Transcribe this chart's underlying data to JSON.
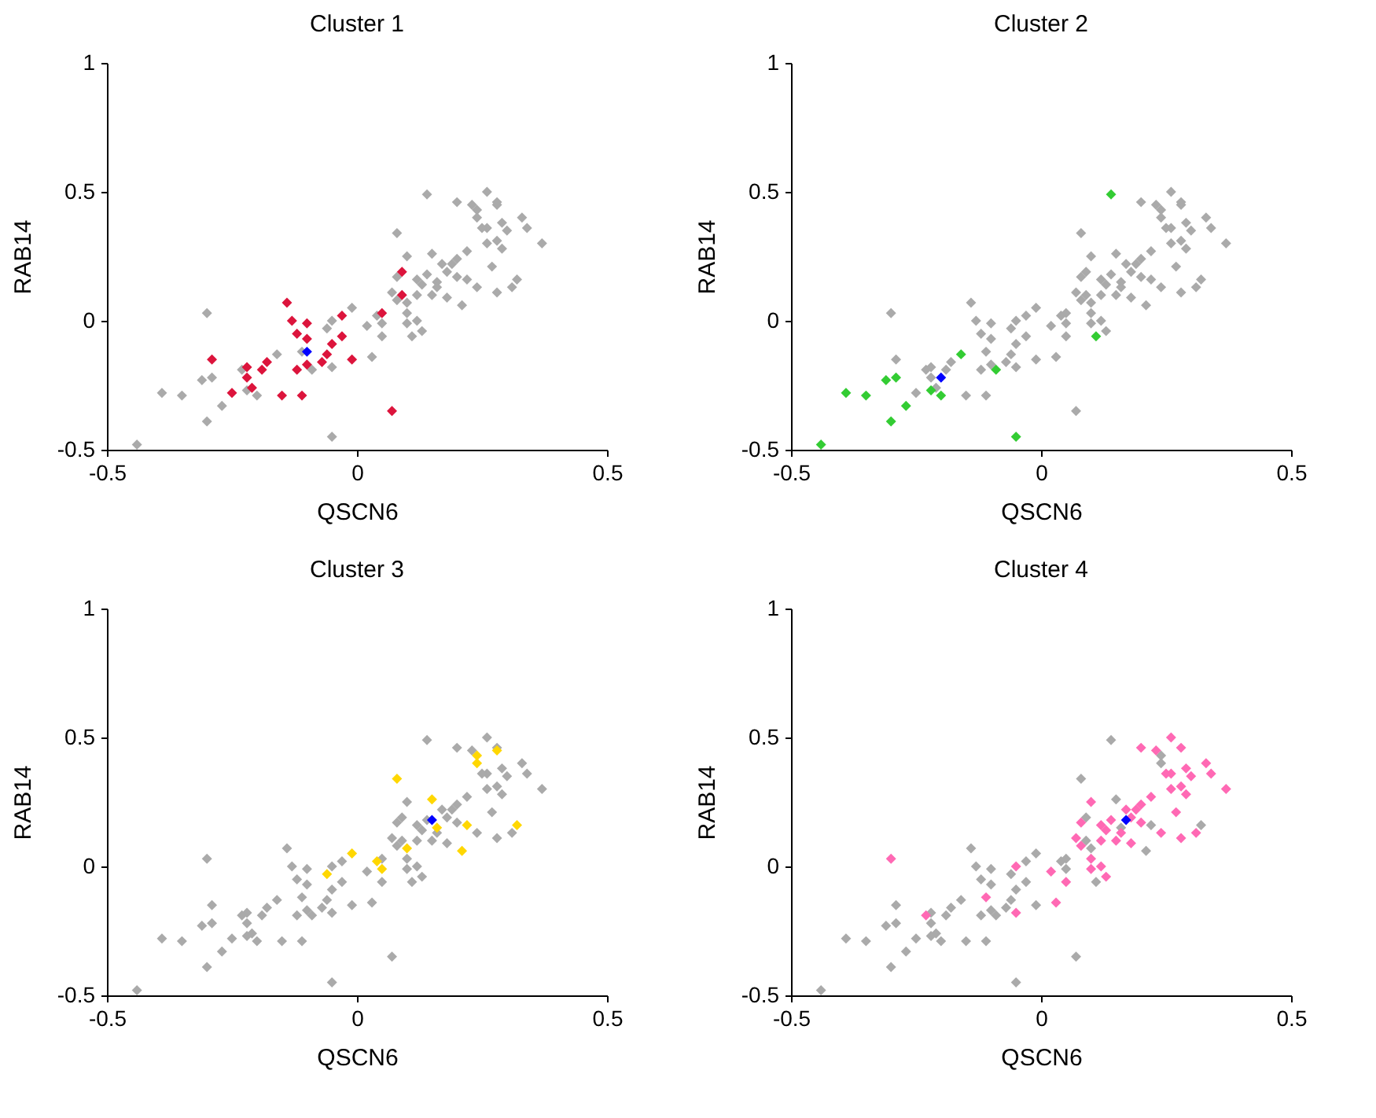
{
  "chart_data": [
    {
      "type": "scatter",
      "title": "Cluster 1",
      "xlabel": "QSCN6",
      "ylabel": "RAB14",
      "xlim": [
        -0.5,
        0.5
      ],
      "ylim": [
        -0.5,
        1
      ],
      "xticks": [
        -0.5,
        0,
        0.5
      ],
      "yticks": [
        -0.5,
        0,
        0.5,
        1
      ],
      "marker": "diamond",
      "series": [
        {
          "color": "#aaaaaa",
          "x": [
            0.14,
            0.11,
            -0.16,
            -0.09,
            -0.22,
            -0.2,
            -0.29,
            -0.31,
            -0.39,
            -0.35,
            -0.27,
            -0.3,
            -0.44,
            -0.05,
            0.08,
            0.24,
            0.24,
            0.28,
            0.15,
            0.16,
            0.22,
            0.32,
            0.21,
            0.1,
            -0.01,
            0.04,
            0.05,
            -0.06,
            0.26,
            0.28,
            0.23,
            0.2,
            0.33,
            0.34,
            0.37,
            0.29,
            0.3,
            0.26,
            0.25,
            0.28,
            0.26,
            0.29,
            0.1,
            0.22,
            0.2,
            0.19,
            0.17,
            0.18,
            0.2,
            0.14,
            0.12,
            0.08,
            0.13,
            0.16,
            0.15,
            0.18,
            0.24,
            0.27,
            0.28,
            0.31,
            0.07,
            0.08,
            0.12,
            0.1,
            0.12,
            0.1,
            0.13,
            0.05,
            0.02,
            -0.05,
            0.03,
            -0.05,
            -0.11,
            -0.23,
            -0.3
          ],
          "values": [
            0.49,
            -0.06,
            -0.13,
            -0.19,
            -0.27,
            -0.29,
            -0.22,
            -0.23,
            -0.28,
            -0.29,
            -0.33,
            -0.39,
            -0.48,
            -0.45,
            0.34,
            0.43,
            0.4,
            0.45,
            0.26,
            0.15,
            0.16,
            0.16,
            0.06,
            0.07,
            0.05,
            0.02,
            -0.01,
            -0.03,
            0.5,
            0.46,
            0.45,
            0.46,
            0.4,
            0.36,
            0.3,
            0.38,
            0.35,
            0.36,
            0.36,
            0.31,
            0.3,
            0.28,
            0.25,
            0.27,
            0.24,
            0.22,
            0.22,
            0.19,
            0.17,
            0.18,
            0.16,
            0.17,
            0.14,
            0.13,
            0.1,
            0.09,
            0.13,
            0.21,
            0.11,
            0.13,
            0.11,
            0.08,
            0.1,
            0.03,
            0,
            -0.01,
            -0.04,
            -0.06,
            -0.02,
            0,
            -0.14,
            -0.18,
            -0.12,
            -0.19,
            0.03
          ]
        },
        {
          "color": "#dc143c",
          "x": [
            -0.14,
            -0.13,
            -0.1,
            -0.12,
            -0.1,
            -0.03,
            0.05,
            0.09,
            0.09,
            -0.03,
            -0.05,
            -0.06,
            -0.07,
            -0.1,
            -0.12,
            -0.01,
            -0.29,
            -0.22,
            -0.22,
            -0.19,
            -0.18,
            -0.21,
            -0.25,
            -0.15,
            -0.11,
            0.07
          ],
          "values": [
            0.07,
            0,
            -0.01,
            -0.05,
            -0.07,
            0.02,
            0.03,
            0.19,
            0.1,
            -0.06,
            -0.09,
            -0.13,
            -0.16,
            -0.17,
            -0.19,
            -0.15,
            -0.15,
            -0.18,
            -0.22,
            -0.19,
            -0.16,
            -0.26,
            -0.28,
            -0.29,
            -0.29,
            -0.35
          ]
        },
        {
          "color": "#0000ff",
          "x": [
            -0.1
          ],
          "values": [
            -0.12
          ]
        }
      ]
    },
    {
      "type": "scatter",
      "title": "Cluster 2",
      "xlabel": "QSCN6",
      "ylabel": "RAB14",
      "xlim": [
        -0.5,
        0.5
      ],
      "ylim": [
        -0.5,
        1
      ],
      "xticks": [
        -0.5,
        0,
        0.5
      ],
      "yticks": [
        -0.5,
        0,
        0.5,
        1
      ],
      "marker": "diamond",
      "series": [
        {
          "color": "#aaaaaa",
          "x": [
            -0.14,
            -0.13,
            -0.1,
            -0.12,
            -0.1,
            -0.03,
            0.05,
            0.09,
            0.09,
            -0.03,
            -0.05,
            -0.06,
            -0.07,
            -0.1,
            -0.12,
            -0.01,
            -0.29,
            -0.22,
            -0.22,
            -0.19,
            -0.18,
            -0.21,
            -0.25,
            -0.15,
            -0.11,
            0.07,
            0.08,
            0.24,
            0.24,
            0.28,
            0.15,
            0.16,
            0.22,
            0.32,
            0.21,
            0.1,
            -0.01,
            0.04,
            0.05,
            -0.06,
            0.26,
            0.28,
            0.23,
            0.2,
            0.33,
            0.34,
            0.37,
            0.29,
            0.3,
            0.26,
            0.25,
            0.28,
            0.26,
            0.29,
            0.1,
            0.22,
            0.2,
            0.19,
            0.17,
            0.18,
            0.2,
            0.14,
            0.12,
            0.08,
            0.13,
            0.16,
            0.15,
            0.18,
            0.24,
            0.27,
            0.28,
            0.31,
            0.07,
            0.08,
            0.12,
            0.1,
            0.12,
            0.1,
            0.13,
            0.05,
            0.02,
            -0.05,
            0.03,
            -0.05,
            -0.11,
            -0.23,
            -0.3
          ],
          "values": [
            0.07,
            0,
            -0.01,
            -0.05,
            -0.07,
            0.02,
            0.03,
            0.19,
            0.1,
            -0.06,
            -0.09,
            -0.13,
            -0.16,
            -0.17,
            -0.19,
            -0.15,
            -0.15,
            -0.18,
            -0.22,
            -0.19,
            -0.16,
            -0.26,
            -0.28,
            -0.29,
            -0.29,
            -0.35,
            0.34,
            0.43,
            0.4,
            0.45,
            0.26,
            0.15,
            0.16,
            0.16,
            0.06,
            0.07,
            0.05,
            0.02,
            -0.01,
            -0.03,
            0.5,
            0.46,
            0.45,
            0.46,
            0.4,
            0.36,
            0.3,
            0.38,
            0.35,
            0.36,
            0.36,
            0.31,
            0.3,
            0.28,
            0.25,
            0.27,
            0.24,
            0.22,
            0.22,
            0.19,
            0.17,
            0.18,
            0.16,
            0.17,
            0.14,
            0.13,
            0.1,
            0.09,
            0.13,
            0.21,
            0.11,
            0.13,
            0.11,
            0.08,
            0.1,
            0.03,
            0,
            -0.01,
            -0.04,
            -0.06,
            -0.02,
            0,
            -0.14,
            -0.18,
            -0.12,
            -0.19,
            0.03
          ]
        },
        {
          "color": "#33cc33",
          "x": [
            0.14,
            0.11,
            -0.16,
            -0.09,
            -0.22,
            -0.2,
            -0.29,
            -0.31,
            -0.39,
            -0.35,
            -0.27,
            -0.3,
            -0.44,
            -0.05
          ],
          "values": [
            0.49,
            -0.06,
            -0.13,
            -0.19,
            -0.27,
            -0.29,
            -0.22,
            -0.23,
            -0.28,
            -0.29,
            -0.33,
            -0.39,
            -0.48,
            -0.45
          ]
        },
        {
          "color": "#0000ff",
          "x": [
            -0.2
          ],
          "values": [
            -0.22
          ]
        }
      ]
    },
    {
      "type": "scatter",
      "title": "Cluster 3",
      "xlabel": "QSCN6",
      "ylabel": "RAB14",
      "xlim": [
        -0.5,
        0.5
      ],
      "ylim": [
        -0.5,
        1
      ],
      "xticks": [
        -0.5,
        0,
        0.5
      ],
      "yticks": [
        -0.5,
        0,
        0.5,
        1
      ],
      "marker": "diamond",
      "series": [
        {
          "color": "#aaaaaa",
          "x": [
            -0.14,
            -0.13,
            -0.1,
            -0.12,
            -0.1,
            -0.03,
            0.05,
            0.09,
            0.09,
            -0.03,
            -0.05,
            -0.06,
            -0.07,
            -0.1,
            -0.12,
            -0.01,
            -0.29,
            -0.22,
            -0.22,
            -0.19,
            -0.18,
            -0.21,
            -0.25,
            -0.15,
            -0.11,
            0.07,
            0.14,
            0.11,
            -0.16,
            -0.09,
            -0.22,
            -0.2,
            -0.29,
            -0.31,
            -0.39,
            -0.35,
            -0.27,
            -0.3,
            -0.44,
            -0.05,
            0.26,
            0.28,
            0.23,
            0.2,
            0.33,
            0.34,
            0.37,
            0.29,
            0.3,
            0.26,
            0.25,
            0.28,
            0.26,
            0.29,
            0.1,
            0.22,
            0.2,
            0.19,
            0.17,
            0.18,
            0.2,
            0.14,
            0.12,
            0.08,
            0.13,
            0.16,
            0.15,
            0.18,
            0.24,
            0.27,
            0.28,
            0.31,
            0.07,
            0.08,
            0.12,
            0.1,
            0.12,
            0.1,
            0.13,
            0.05,
            0.02,
            -0.05,
            0.03,
            -0.05,
            -0.11,
            -0.23,
            -0.3
          ],
          "values": [
            0.07,
            0,
            -0.01,
            -0.05,
            -0.07,
            0.02,
            0.03,
            0.19,
            0.1,
            -0.06,
            -0.09,
            -0.13,
            -0.16,
            -0.17,
            -0.19,
            -0.15,
            -0.15,
            -0.18,
            -0.22,
            -0.19,
            -0.16,
            -0.26,
            -0.28,
            -0.29,
            -0.29,
            -0.35,
            0.49,
            -0.06,
            -0.13,
            -0.19,
            -0.27,
            -0.29,
            -0.22,
            -0.23,
            -0.28,
            -0.29,
            -0.33,
            -0.39,
            -0.48,
            -0.45,
            0.5,
            0.46,
            0.45,
            0.46,
            0.4,
            0.36,
            0.3,
            0.38,
            0.35,
            0.36,
            0.36,
            0.31,
            0.3,
            0.28,
            0.25,
            0.27,
            0.24,
            0.22,
            0.22,
            0.19,
            0.17,
            0.18,
            0.16,
            0.17,
            0.14,
            0.13,
            0.1,
            0.09,
            0.13,
            0.21,
            0.11,
            0.13,
            0.11,
            0.08,
            0.1,
            0.03,
            0,
            -0.01,
            -0.04,
            -0.06,
            -0.02,
            0,
            -0.14,
            -0.18,
            -0.12,
            -0.19,
            0.03
          ]
        },
        {
          "color": "#ffd700",
          "x": [
            0.08,
            0.24,
            0.24,
            0.28,
            0.15,
            0.16,
            0.22,
            0.32,
            0.21,
            0.1,
            -0.01,
            0.04,
            0.05,
            -0.06
          ],
          "values": [
            0.34,
            0.43,
            0.4,
            0.45,
            0.26,
            0.15,
            0.16,
            0.16,
            0.06,
            0.07,
            0.05,
            0.02,
            -0.01,
            -0.03
          ]
        },
        {
          "color": "#0000ff",
          "x": [
            0.15
          ],
          "values": [
            0.18
          ]
        }
      ]
    },
    {
      "type": "scatter",
      "title": "Cluster 4",
      "xlabel": "QSCN6",
      "ylabel": "RAB14",
      "xlim": [
        -0.5,
        0.5
      ],
      "ylim": [
        -0.5,
        1
      ],
      "xticks": [
        -0.5,
        0,
        0.5
      ],
      "yticks": [
        -0.5,
        0,
        0.5,
        1
      ],
      "marker": "diamond",
      "series": [
        {
          "color": "#aaaaaa",
          "x": [
            -0.14,
            -0.13,
            -0.1,
            -0.12,
            -0.1,
            -0.03,
            0.05,
            0.09,
            0.09,
            -0.03,
            -0.05,
            -0.06,
            -0.07,
            -0.1,
            -0.12,
            -0.01,
            -0.29,
            -0.22,
            -0.22,
            -0.19,
            -0.18,
            -0.21,
            -0.25,
            -0.15,
            -0.11,
            0.07,
            0.14,
            0.11,
            -0.16,
            -0.09,
            -0.22,
            -0.2,
            -0.29,
            -0.31,
            -0.39,
            -0.35,
            -0.27,
            -0.3,
            -0.44,
            -0.05,
            0.08,
            0.24,
            0.24,
            0.15,
            0.16,
            0.22,
            0.32,
            0.21,
            0.1,
            -0.01,
            0.04,
            0.05,
            -0.06
          ],
          "values": [
            0.07,
            0,
            -0.01,
            -0.05,
            -0.07,
            0.02,
            0.03,
            0.19,
            0.1,
            -0.06,
            -0.09,
            -0.13,
            -0.16,
            -0.17,
            -0.19,
            -0.15,
            -0.15,
            -0.18,
            -0.22,
            -0.19,
            -0.16,
            -0.26,
            -0.28,
            -0.29,
            -0.29,
            -0.35,
            0.49,
            -0.06,
            -0.13,
            -0.19,
            -0.27,
            -0.29,
            -0.22,
            -0.23,
            -0.28,
            -0.29,
            -0.33,
            -0.39,
            -0.48,
            -0.45,
            0.34,
            0.43,
            0.4,
            0.26,
            0.15,
            0.16,
            0.16,
            0.06,
            0.07,
            0.05,
            0.02,
            -0.01,
            -0.03
          ]
        },
        {
          "color": "#ff69b4",
          "x": [
            0.26,
            0.28,
            0.23,
            0.2,
            0.33,
            0.34,
            0.37,
            0.29,
            0.3,
            0.26,
            0.25,
            0.28,
            0.26,
            0.29,
            0.1,
            0.22,
            0.2,
            0.19,
            0.17,
            0.18,
            0.2,
            0.14,
            0.12,
            0.08,
            0.13,
            0.16,
            0.15,
            0.18,
            0.24,
            0.27,
            0.28,
            0.31,
            0.07,
            0.08,
            0.12,
            0.1,
            0.12,
            0.1,
            0.13,
            0.05,
            0.02,
            -0.05,
            0.03,
            -0.05,
            -0.11,
            -0.23,
            -0.3
          ],
          "values": [
            0.5,
            0.46,
            0.45,
            0.46,
            0.4,
            0.36,
            0.3,
            0.38,
            0.35,
            0.36,
            0.36,
            0.31,
            0.3,
            0.28,
            0.25,
            0.27,
            0.24,
            0.22,
            0.22,
            0.19,
            0.17,
            0.18,
            0.16,
            0.17,
            0.14,
            0.13,
            0.1,
            0.09,
            0.13,
            0.21,
            0.11,
            0.13,
            0.11,
            0.08,
            0.1,
            0.03,
            0,
            -0.01,
            -0.04,
            -0.06,
            -0.02,
            0,
            -0.14,
            -0.18,
            -0.12,
            -0.19,
            0.03
          ]
        },
        {
          "color": "#0000ff",
          "x": [
            0.17
          ],
          "values": [
            0.18
          ]
        }
      ]
    }
  ]
}
